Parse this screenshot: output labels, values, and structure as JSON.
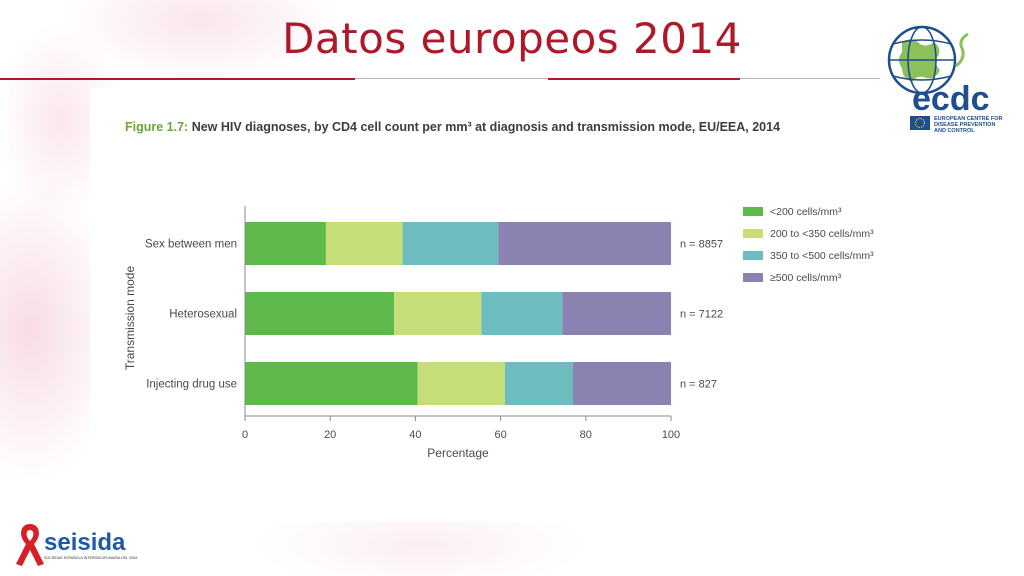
{
  "slide": {
    "title": "Datos europeos 2014"
  },
  "figure": {
    "caption_number": "Figure 1.7:",
    "caption_text": " New HIV diagnoses, by CD4 cell count per mm³ at diagnosis and transmission mode, EU/EEA, 2014"
  },
  "colors": {
    "title_red": "#b0182a",
    "lt200": "#5cb94a",
    "200to350": "#c5de7a",
    "350to500": "#6cbcc0",
    "ge500": "#8a82b0"
  },
  "chart_data": {
    "type": "bar",
    "orientation": "horizontal",
    "stacked": true,
    "categories": [
      "Sex between men",
      "Heterosexual",
      "Injecting drug use"
    ],
    "series": [
      {
        "name": "<200 cells/mm³",
        "values": [
          19,
          35,
          40.5
        ]
      },
      {
        "name": "200 to <350 cells/mm³",
        "values": [
          18,
          20.5,
          20.5
        ]
      },
      {
        "name": "350 to <500 cells/mm³",
        "values": [
          22.5,
          19,
          16
        ]
      },
      {
        "name": "≥500 cells/mm³",
        "values": [
          40.5,
          25.5,
          23
        ]
      }
    ],
    "bar_annotations": [
      "n = 8857",
      "n = 7122",
      "n = 827"
    ],
    "xlabel": "Percentage",
    "ylabel": "Transmission mode",
    "xlim": [
      0,
      100
    ],
    "xticks": [
      0,
      20,
      40,
      60,
      80,
      100
    ],
    "grid": false,
    "legend_position": "right"
  },
  "logos": {
    "ecdc_wordmark": "ecdc",
    "ecdc_subtitle": [
      "EUROPEAN CENTRE FOR",
      "DISEASE PREVENTION",
      "AND CONTROL"
    ],
    "seisida_wordmark": "seisida",
    "seisida_subtitle": "SOCIEDAD ESPAÑOLA INTERDISCIPLINARIA DEL SIDA"
  }
}
